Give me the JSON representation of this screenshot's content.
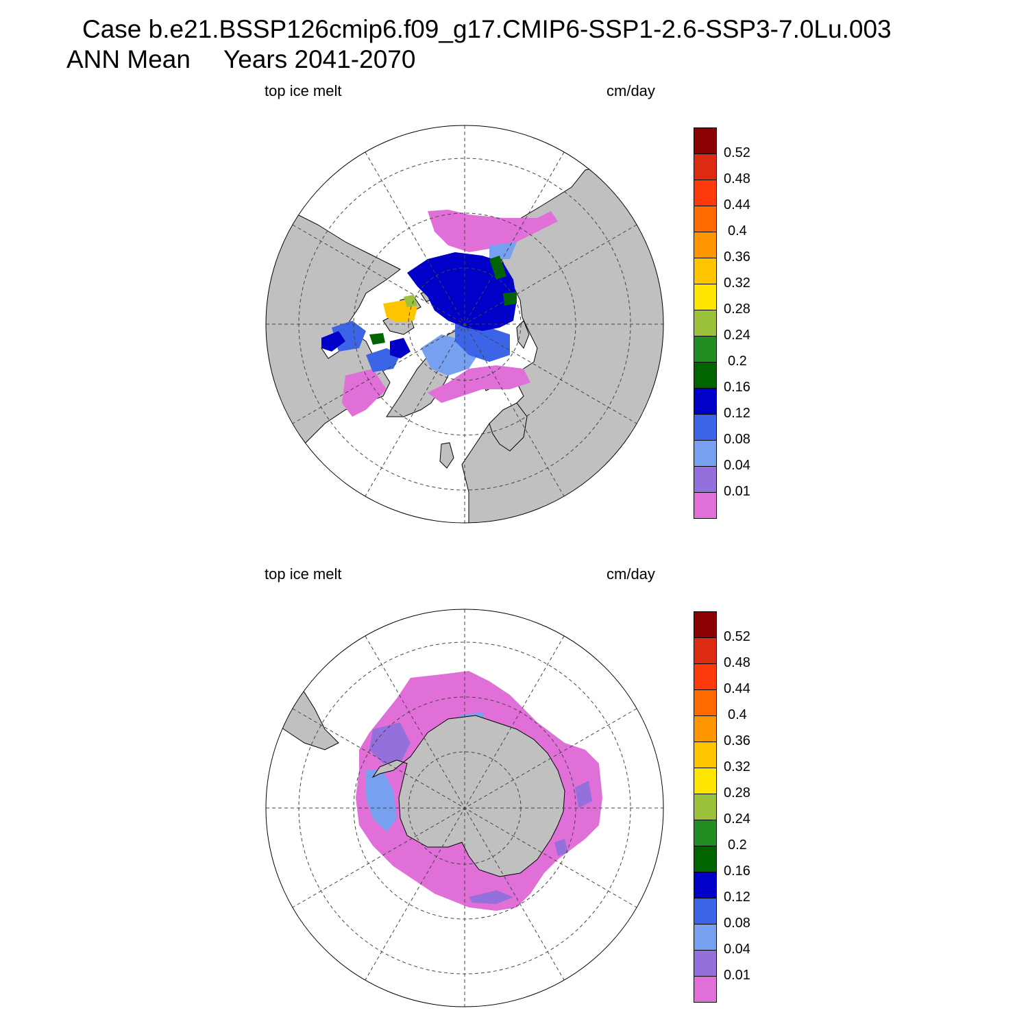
{
  "title": {
    "line1": "Case b.e21.BSSP126cmip6.f09_g17.CMIP6-SSP1-2.6-SSP3-7.0Lu.003",
    "line2_left": "ANN Mean",
    "line2_right": "Years 2041-2070"
  },
  "panels": [
    {
      "id": "north",
      "left_label": "top ice melt",
      "right_label": "cm/day",
      "hemisphere": "north-polar-stereographic"
    },
    {
      "id": "south",
      "left_label": "top ice melt",
      "right_label": "cm/day",
      "hemisphere": "south-polar-stereographic"
    }
  ],
  "colorbar": {
    "labels": [
      "0.52",
      "0.48",
      "0.44",
      "0.4",
      "0.36",
      "0.32",
      "0.28",
      "0.24",
      "0.2",
      "0.16",
      "0.12",
      "0.08",
      "0.04",
      "0.01"
    ],
    "colors_top_to_bottom": [
      "#8b0000",
      "#dd2a12",
      "#ff3a0a",
      "#ff6a00",
      "#ff9500",
      "#ffc400",
      "#ffe600",
      "#9bc23a",
      "#228b22",
      "#006400",
      "#0000c8",
      "#3c64e6",
      "#78a0f0",
      "#9370db",
      "#e070d8"
    ]
  },
  "colors": {
    "land": "#c0c0c0",
    "ocean_no_data": "#ffffff",
    "grid": "#444444"
  }
}
